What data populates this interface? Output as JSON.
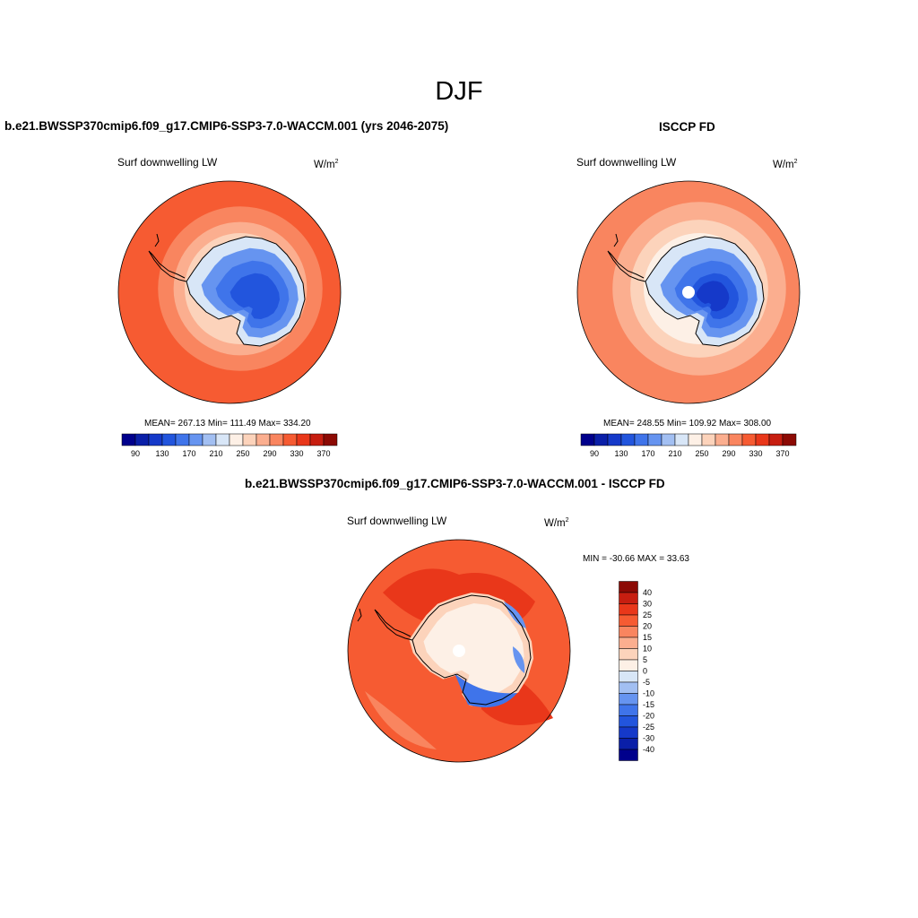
{
  "figure": {
    "title": "DJF",
    "units_base": "W/m",
    "units_exp": "2"
  },
  "panels": [
    {
      "id": "model",
      "title": "b.e21.BWSSP370cmip6.f09_g17.CMIP6-SSP3-7.0-WACCM.001 (yrs 2046-2075)",
      "variable": "Surf downwelling LW",
      "stats": "MEAN= 267.13  Min= 111.49  Max= 334.20",
      "rings": [
        {
          "level": 310,
          "radius_frac": 1.0
        },
        {
          "level": 290,
          "radius_frac": 0.74
        },
        {
          "level": 270,
          "radius_frac": 0.6
        },
        {
          "level": 250,
          "radius_frac": 0.5
        }
      ],
      "has_pole_hole": false
    },
    {
      "id": "obs",
      "title": "ISCCP FD",
      "variable": "Surf downwelling LW",
      "stats": "MEAN= 248.55  Min= 109.92  Max= 308.00",
      "rings": [
        {
          "level": 290,
          "radius_frac": 1.0
        },
        {
          "level": 270,
          "radius_frac": 0.78
        },
        {
          "level": 250,
          "radius_frac": 0.62
        },
        {
          "level": 230,
          "radius_frac": 0.5
        }
      ],
      "has_pole_hole": true
    }
  ],
  "colorbar_abs": {
    "levels": [
      90,
      110,
      130,
      150,
      170,
      190,
      210,
      230,
      250,
      270,
      290,
      310,
      330,
      350,
      370
    ],
    "tick_labels": [
      "90",
      "130",
      "170",
      "210",
      "250",
      "290",
      "330",
      "370"
    ],
    "colors": [
      "#00008c",
      "#0a1fa8",
      "#1539c9",
      "#2255dd",
      "#3f74ea",
      "#6694f0",
      "#a2bff2",
      "#d8e6f7",
      "#fdf0e6",
      "#fcd3bb",
      "#fbae8f",
      "#f9855f",
      "#f65b32",
      "#e9371a",
      "#c71e10",
      "#8c0a04"
    ]
  },
  "diff_panel": {
    "title": "b.e21.BWSSP370cmip6.f09_g17.CMIP6-SSP3-7.0-WACCM.001 - ISCCP FD",
    "variable": "Surf downwelling LW",
    "stats": "MIN = -30.66 MAX =  33.63",
    "has_pole_hole": true
  },
  "colorbar_diff": {
    "levels": [
      "40",
      "30",
      "25",
      "20",
      "15",
      "10",
      "5",
      "0",
      "-5",
      "-10",
      "-15",
      "-20",
      "-25",
      "-30",
      "-40"
    ],
    "colors": [
      "#8c0a04",
      "#c71e10",
      "#e9371a",
      "#f65b32",
      "#f9855f",
      "#fbae8f",
      "#fcd3bb",
      "#fdf0e6",
      "#d8e6f7",
      "#a2bff2",
      "#6694f0",
      "#3f74ea",
      "#2255dd",
      "#1539c9",
      "#0a1fa8",
      "#00008c"
    ]
  }
}
